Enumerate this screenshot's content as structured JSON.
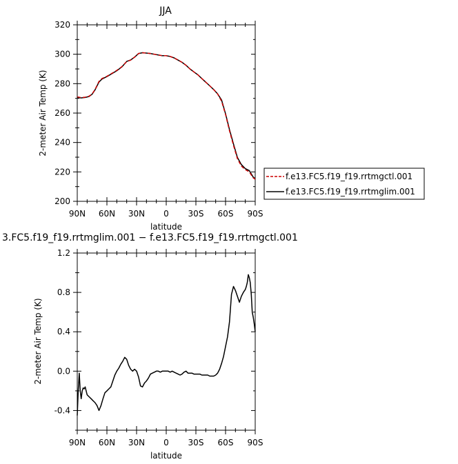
{
  "chart_data": [
    {
      "type": "line",
      "title": "JJA",
      "xlabel": "latitude",
      "ylabel": "2-meter Air Temp (K)",
      "xlim": [
        90,
        -90
      ],
      "ylim": [
        200,
        320
      ],
      "yticks": [
        200,
        220,
        240,
        260,
        280,
        300,
        320
      ],
      "xticks": [
        90,
        60,
        30,
        0,
        -30,
        -60,
        -90
      ],
      "xticklabels": [
        "90N",
        "60N",
        "30N",
        "0",
        "30S",
        "60S",
        "90S"
      ],
      "legend_placement": "right",
      "series": [
        {
          "name": "f.e13.FC5.f19_f19.rrtmgctl.001",
          "color": "#cc0000",
          "dash": "dashed",
          "x": [
            90,
            86,
            82,
            78,
            75,
            72,
            68,
            65,
            60,
            55,
            50,
            45,
            40,
            36,
            32,
            28,
            24,
            20,
            16,
            12,
            8,
            4,
            0,
            -4,
            -8,
            -12,
            -16,
            -20,
            -24,
            -28,
            -32,
            -36,
            -40,
            -44,
            -48,
            -52,
            -56,
            -60,
            -64,
            -68,
            -72,
            -76,
            -80,
            -84,
            -88,
            -90
          ],
          "y": [
            271,
            270.5,
            270.8,
            271.5,
            273,
            276,
            281.5,
            283.5,
            285,
            287,
            289,
            291.5,
            295,
            296,
            298,
            300.5,
            301,
            300.8,
            300.5,
            300,
            299.5,
            299,
            299,
            298.5,
            297.5,
            296,
            294.5,
            292.5,
            290,
            288,
            286,
            283.5,
            281,
            278.5,
            276,
            273,
            268,
            259,
            248,
            238,
            229,
            224,
            221.5,
            220,
            216,
            215
          ]
        },
        {
          "name": "f.e13.FC5.f19_f19.rrtmglim.001",
          "color": "#000000",
          "dash": "solid",
          "x": [
            90,
            86,
            82,
            78,
            75,
            72,
            68,
            65,
            60,
            55,
            50,
            45,
            40,
            36,
            32,
            28,
            24,
            20,
            16,
            12,
            8,
            4,
            0,
            -4,
            -8,
            -12,
            -16,
            -20,
            -24,
            -28,
            -32,
            -36,
            -40,
            -44,
            -48,
            -52,
            -56,
            -60,
            -64,
            -68,
            -72,
            -76,
            -80,
            -84,
            -88,
            -90
          ],
          "y": [
            270.6,
            270.3,
            270.6,
            271.3,
            272.8,
            275.8,
            281.1,
            283.1,
            284.8,
            286.8,
            288.8,
            291.3,
            295.1,
            296.1,
            298,
            300.5,
            301,
            300.8,
            300.5,
            300,
            299.5,
            299,
            299,
            298.5,
            297.5,
            296,
            294.5,
            292.5,
            290,
            288,
            286,
            283.5,
            281,
            278.5,
            276,
            273.1,
            268.8,
            259.5,
            248.8,
            239,
            229.8,
            225,
            222.2,
            220.9,
            216.5,
            215.4
          ]
        }
      ]
    },
    {
      "type": "line",
      "title": "3.FC5.f19_f19.rrtmglim.001 − f.e13.FC5.f19_f19.rrtmgctl.001",
      "xlabel": "latitude",
      "ylabel": "2-meter Air Temp (K)",
      "xlim": [
        90,
        -90
      ],
      "ylim": [
        -0.6,
        1.2
      ],
      "yticks": [
        -0.4,
        0.0,
        0.4,
        0.8,
        1.2
      ],
      "yticklabels": [
        "-0.4",
        "0.0",
        "0.4",
        "0.8",
        "1.2"
      ],
      "xticks": [
        90,
        60,
        30,
        0,
        -30,
        -60,
        -90
      ],
      "xticklabels": [
        "90N",
        "60N",
        "30N",
        "0",
        "30S",
        "60S",
        "90S"
      ],
      "series": [
        {
          "color": "#000000",
          "dash": "solid",
          "x": [
            90,
            89,
            88,
            87,
            86,
            85,
            84,
            83,
            82,
            81,
            80,
            78,
            76,
            74,
            72,
            70,
            68,
            66,
            64,
            62,
            60,
            58,
            56,
            54,
            52,
            50,
            48,
            46,
            44,
            42,
            40,
            38,
            36,
            34,
            32,
            30,
            28,
            26,
            24,
            22,
            20,
            18,
            16,
            14,
            12,
            10,
            8,
            6,
            4,
            2,
            0,
            -2,
            -4,
            -6,
            -8,
            -10,
            -12,
            -14,
            -16,
            -18,
            -20,
            -22,
            -24,
            -26,
            -28,
            -30,
            -32,
            -34,
            -36,
            -38,
            -40,
            -42,
            -44,
            -46,
            -48,
            -50,
            -52,
            -54,
            -56,
            -58,
            -60,
            -62,
            -64,
            -66,
            -68,
            -70,
            -72,
            -74,
            -76,
            -78,
            -80,
            -81,
            -82,
            -83,
            -84,
            -85,
            -86,
            -87,
            -88,
            -89,
            -90
          ],
          "y": [
            -0.45,
            -0.2,
            -0.02,
            -0.2,
            -0.28,
            -0.2,
            -0.17,
            -0.18,
            -0.16,
            -0.2,
            -0.24,
            -0.26,
            -0.28,
            -0.3,
            -0.32,
            -0.35,
            -0.4,
            -0.35,
            -0.28,
            -0.22,
            -0.2,
            -0.18,
            -0.16,
            -0.1,
            -0.04,
            0.0,
            0.03,
            0.07,
            0.1,
            0.14,
            0.12,
            0.06,
            0.02,
            0.0,
            0.02,
            0.0,
            -0.06,
            -0.15,
            -0.16,
            -0.12,
            -0.1,
            -0.07,
            -0.03,
            -0.02,
            -0.01,
            0.0,
            0.0,
            -0.01,
            0.0,
            0.0,
            0.0,
            0.0,
            -0.01,
            0.0,
            -0.01,
            -0.02,
            -0.03,
            -0.04,
            -0.03,
            -0.01,
            0.0,
            -0.02,
            -0.02,
            -0.02,
            -0.03,
            -0.03,
            -0.03,
            -0.03,
            -0.04,
            -0.04,
            -0.04,
            -0.04,
            -0.05,
            -0.05,
            -0.05,
            -0.04,
            -0.02,
            0.02,
            0.08,
            0.15,
            0.25,
            0.35,
            0.5,
            0.78,
            0.86,
            0.82,
            0.76,
            0.7,
            0.76,
            0.8,
            0.83,
            0.86,
            0.9,
            0.98,
            0.95,
            0.9,
            0.78,
            0.6,
            0.55,
            0.48,
            0.4
          ]
        }
      ]
    }
  ]
}
